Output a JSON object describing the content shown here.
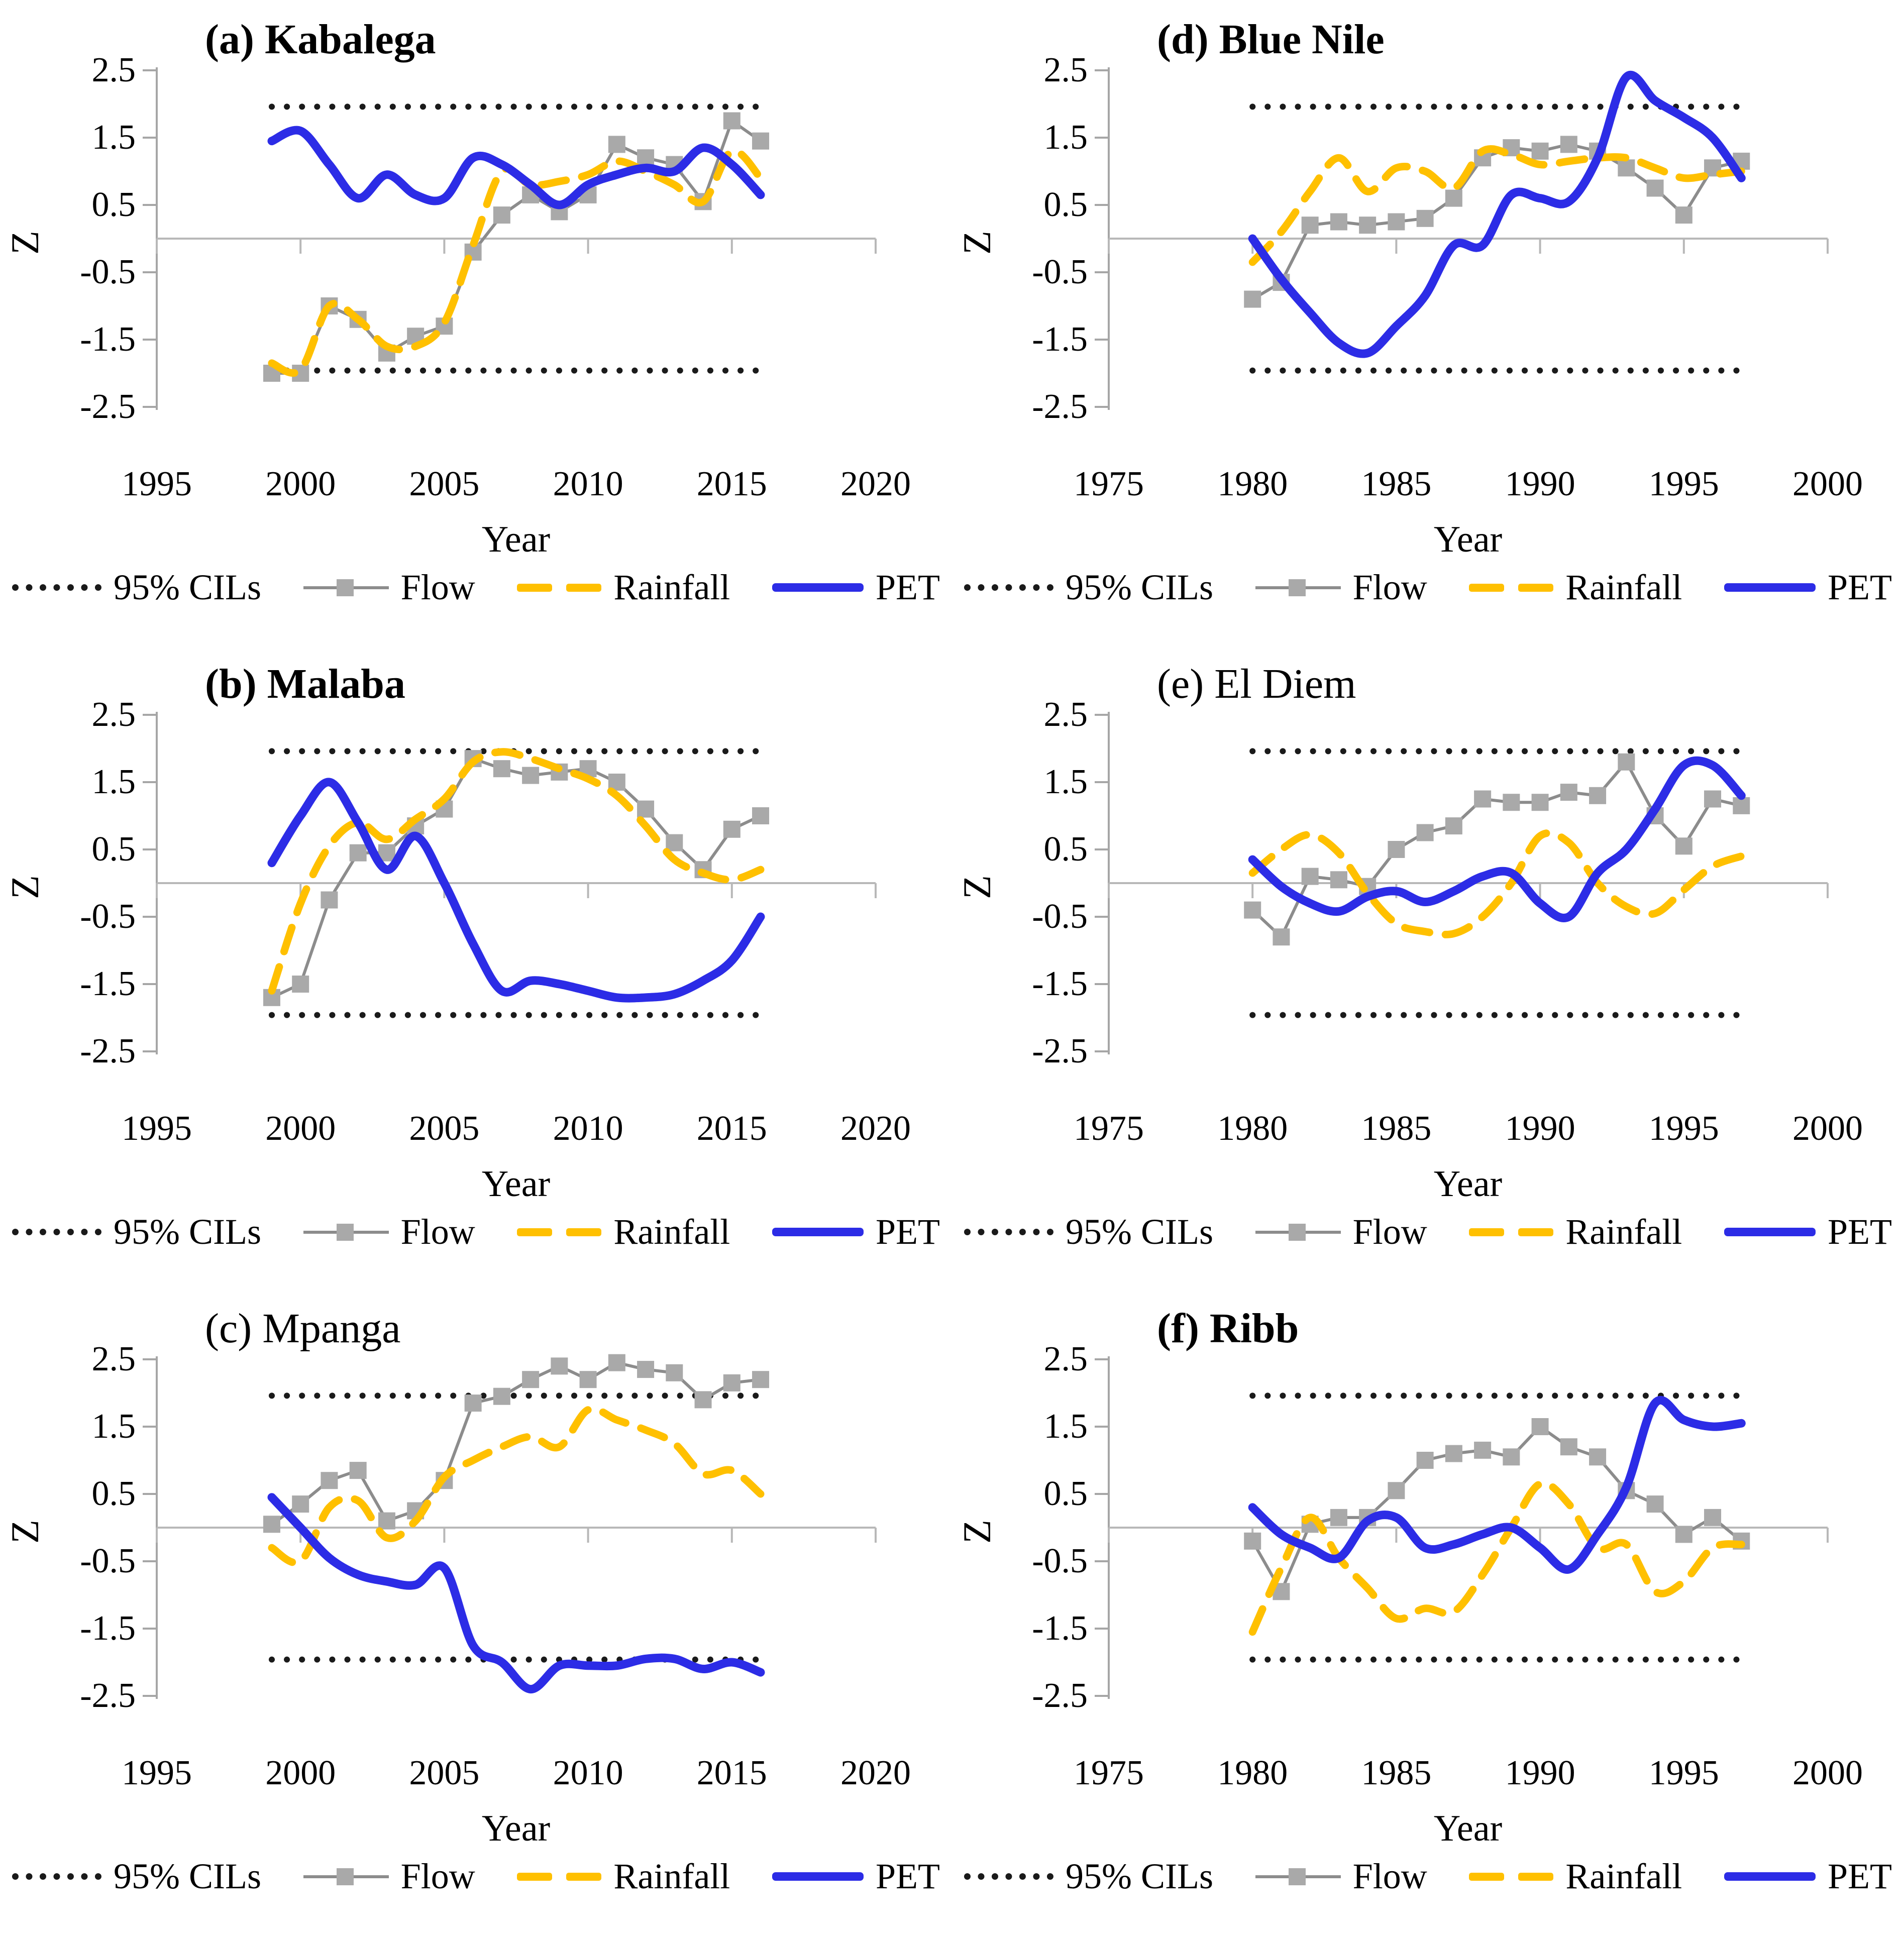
{
  "figure": {
    "background": "#ffffff"
  },
  "colors": {
    "flow_marker": "#a9a9a9",
    "flow_line": "#8c8c8c",
    "rainfall": "#ffc000",
    "pet": "#2c2ce6",
    "cil": "#1a1a1a",
    "y_axis": "#a6a6a6",
    "zero_line": "#b8b8b8"
  },
  "legend": {
    "cils": "95% CILs",
    "flow": "Flow",
    "rainfall": "Rainfall",
    "pet": "PET"
  },
  "chart_data": [
    {
      "id": "a",
      "type": "line",
      "title": "(a) Kabalega",
      "title_bold": true,
      "xlabel": "Year",
      "ylabel": "Z",
      "x_range": [
        1995,
        2020
      ],
      "ylim": [
        -2.5,
        2.5
      ],
      "cil": 1.96,
      "x_ticks": [
        "1995",
        "2000",
        "2005",
        "2010",
        "2015",
        "2020"
      ],
      "y_ticks": [
        "2.5",
        "1.5",
        "0.5",
        "-0.5",
        "-1.5",
        "-2.5"
      ],
      "years": [
        1999,
        2000,
        2001,
        2002,
        2003,
        2004,
        2005,
        2006,
        2007,
        2008,
        2009,
        2010,
        2011,
        2012,
        2013,
        2014,
        2015,
        2016
      ],
      "series": [
        {
          "name": "Flow",
          "values": [
            -2.0,
            -2.0,
            -1.0,
            -1.2,
            -1.7,
            -1.45,
            -1.3,
            -0.2,
            0.35,
            0.65,
            0.4,
            0.65,
            1.4,
            1.2,
            1.1,
            0.55,
            1.75,
            1.45
          ]
        },
        {
          "name": "Rainfall",
          "values": [
            -1.85,
            -1.95,
            -1.0,
            -1.2,
            -1.6,
            -1.6,
            -1.25,
            -0.1,
            1.0,
            0.8,
            0.85,
            0.95,
            1.15,
            1.0,
            0.8,
            0.55,
            1.3,
            0.9
          ]
        },
        {
          "name": "PET",
          "values": [
            1.45,
            1.6,
            1.1,
            0.6,
            0.95,
            0.65,
            0.6,
            1.2,
            1.1,
            0.8,
            0.5,
            0.8,
            0.95,
            1.05,
            1.0,
            1.35,
            1.1,
            0.65
          ]
        }
      ]
    },
    {
      "id": "d",
      "type": "line",
      "title": "(d) Blue Nile",
      "title_bold": true,
      "xlabel": "Year",
      "ylabel": "Z",
      "x_range": [
        1975,
        2000
      ],
      "ylim": [
        -2.5,
        2.5
      ],
      "cil": 1.96,
      "x_ticks": [
        "1975",
        "1980",
        "1985",
        "1990",
        "1995",
        "2000"
      ],
      "y_ticks": [
        "2.5",
        "1.5",
        "0.5",
        "-0.5",
        "-1.5",
        "-2.5"
      ],
      "years": [
        1980,
        1981,
        1982,
        1983,
        1984,
        1985,
        1986,
        1987,
        1988,
        1989,
        1990,
        1991,
        1992,
        1993,
        1994,
        1995,
        1996,
        1997
      ],
      "series": [
        {
          "name": "Flow",
          "values": [
            -0.9,
            -0.65,
            0.2,
            0.25,
            0.2,
            0.25,
            0.3,
            0.6,
            1.2,
            1.35,
            1.3,
            1.4,
            1.3,
            1.05,
            0.75,
            0.35,
            1.05,
            1.15
          ]
        },
        {
          "name": "Rainfall",
          "values": [
            -0.35,
            0.1,
            0.7,
            1.2,
            0.7,
            1.05,
            1.0,
            0.75,
            1.3,
            1.25,
            1.1,
            1.15,
            1.2,
            1.2,
            1.05,
            0.9,
            0.95,
            1.0
          ]
        },
        {
          "name": "PET",
          "values": [
            0.0,
            -0.6,
            -1.1,
            -1.55,
            -1.7,
            -1.3,
            -0.85,
            -0.1,
            -0.1,
            0.65,
            0.6,
            0.55,
            1.2,
            2.4,
            2.05,
            1.8,
            1.5,
            0.9
          ]
        }
      ]
    },
    {
      "id": "b",
      "type": "line",
      "title": "(b) Malaba",
      "title_bold": true,
      "xlabel": "Year",
      "ylabel": "Z",
      "x_range": [
        1995,
        2020
      ],
      "ylim": [
        -2.5,
        2.5
      ],
      "cil": 1.96,
      "x_ticks": [
        "1995",
        "2000",
        "2005",
        "2010",
        "2015",
        "2020"
      ],
      "y_ticks": [
        "2.5",
        "1.5",
        "0.5",
        "-0.5",
        "-1.5",
        "-2.5"
      ],
      "years": [
        1999,
        2000,
        2001,
        2002,
        2003,
        2004,
        2005,
        2006,
        2007,
        2008,
        2009,
        2010,
        2011,
        2012,
        2013,
        2014,
        2015,
        2016
      ],
      "series": [
        {
          "name": "Flow",
          "values": [
            -1.7,
            -1.5,
            -0.25,
            0.45,
            0.45,
            0.85,
            1.1,
            1.85,
            1.7,
            1.6,
            1.65,
            1.7,
            1.5,
            1.1,
            0.6,
            0.2,
            0.8,
            1.0
          ]
        },
        {
          "name": "Rainfall",
          "values": [
            -1.6,
            -0.3,
            0.55,
            0.9,
            0.65,
            0.95,
            1.25,
            1.8,
            1.95,
            1.85,
            1.7,
            1.55,
            1.3,
            0.85,
            0.35,
            0.15,
            0.05,
            0.2
          ]
        },
        {
          "name": "PET",
          "values": [
            0.3,
            1.0,
            1.5,
            0.9,
            0.2,
            0.7,
            0.0,
            -0.9,
            -1.6,
            -1.45,
            -1.5,
            -1.6,
            -1.7,
            -1.7,
            -1.65,
            -1.45,
            -1.15,
            -0.5
          ]
        }
      ]
    },
    {
      "id": "e",
      "type": "line",
      "title": "(e) El Diem",
      "title_bold": false,
      "xlabel": "Year",
      "ylabel": "Z",
      "x_range": [
        1975,
        2000
      ],
      "ylim": [
        -2.5,
        2.5
      ],
      "cil": 1.96,
      "x_ticks": [
        "1975",
        "1980",
        "1985",
        "1990",
        "1995",
        "2000"
      ],
      "y_ticks": [
        "2.5",
        "1.5",
        "0.5",
        "-0.5",
        "-1.5",
        "-2.5"
      ],
      "years": [
        1980,
        1981,
        1982,
        1983,
        1984,
        1985,
        1986,
        1987,
        1988,
        1989,
        1990,
        1991,
        1992,
        1993,
        1994,
        1995,
        1996,
        1997
      ],
      "series": [
        {
          "name": "Flow",
          "values": [
            -0.4,
            -0.8,
            0.1,
            0.05,
            -0.05,
            0.5,
            0.75,
            0.85,
            1.25,
            1.2,
            1.2,
            1.35,
            1.3,
            1.8,
            1.0,
            0.55,
            1.25,
            1.15
          ]
        },
        {
          "name": "Rainfall",
          "values": [
            0.15,
            0.5,
            0.72,
            0.45,
            -0.15,
            -0.6,
            -0.72,
            -0.75,
            -0.5,
            0.0,
            0.7,
            0.6,
            0.0,
            -0.35,
            -0.45,
            -0.1,
            0.25,
            0.4
          ]
        },
        {
          "name": "PET",
          "values": [
            0.35,
            -0.05,
            -0.3,
            -0.42,
            -0.2,
            -0.12,
            -0.28,
            -0.12,
            0.1,
            0.15,
            -0.3,
            -0.5,
            0.15,
            0.5,
            1.1,
            1.75,
            1.75,
            1.3
          ]
        }
      ]
    },
    {
      "id": "c",
      "type": "line",
      "title": "(c) Mpanga",
      "title_bold": false,
      "xlabel": "Year",
      "ylabel": "Z",
      "x_range": [
        1995,
        2020
      ],
      "ylim": [
        -2.5,
        2.5
      ],
      "cil": 1.96,
      "x_ticks": [
        "1995",
        "2000",
        "2005",
        "2010",
        "2015",
        "2020"
      ],
      "y_ticks": [
        "2.5",
        "1.5",
        "0.5",
        "-0.5",
        "-1.5",
        "-2.5"
      ],
      "years": [
        1999,
        2000,
        2001,
        2002,
        2003,
        2004,
        2005,
        2006,
        2007,
        2008,
        2009,
        2010,
        2011,
        2012,
        2013,
        2014,
        2015,
        2016
      ],
      "series": [
        {
          "name": "Flow",
          "values": [
            0.05,
            0.35,
            0.7,
            0.85,
            0.1,
            0.25,
            0.7,
            1.85,
            1.95,
            2.2,
            2.4,
            2.2,
            2.45,
            2.35,
            2.3,
            1.9,
            2.15,
            2.2
          ]
        },
        {
          "name": "Rainfall",
          "values": [
            -0.3,
            -0.5,
            0.3,
            0.4,
            -0.15,
            0.1,
            0.75,
            1.0,
            1.2,
            1.35,
            1.2,
            1.75,
            1.6,
            1.45,
            1.25,
            0.8,
            0.85,
            0.5
          ]
        },
        {
          "name": "PET",
          "values": [
            0.45,
            0.0,
            -0.45,
            -0.7,
            -0.8,
            -0.85,
            -0.6,
            -1.75,
            -2.0,
            -2.4,
            -2.05,
            -2.05,
            -2.05,
            -1.95,
            -1.95,
            -2.1,
            -2.0,
            -2.15
          ]
        }
      ]
    },
    {
      "id": "f",
      "type": "line",
      "title": "(f) Ribb",
      "title_bold": true,
      "xlabel": "Year",
      "ylabel": "Z",
      "x_range": [
        1975,
        2000
      ],
      "ylim": [
        -2.5,
        2.5
      ],
      "cil": 1.96,
      "x_ticks": [
        "1975",
        "1980",
        "1985",
        "1990",
        "1995",
        "2000"
      ],
      "y_ticks": [
        "2.5",
        "1.5",
        "0.5",
        "-0.5",
        "-1.5",
        "-2.5"
      ],
      "years": [
        1980,
        1981,
        1982,
        1983,
        1984,
        1985,
        1986,
        1987,
        1988,
        1989,
        1990,
        1991,
        1992,
        1993,
        1994,
        1995,
        1996,
        1997
      ],
      "series": [
        {
          "name": "Flow",
          "values": [
            -0.2,
            -0.95,
            0.05,
            0.15,
            0.15,
            0.55,
            1.0,
            1.1,
            1.15,
            1.05,
            1.5,
            1.2,
            1.05,
            0.55,
            0.35,
            -0.1,
            0.15,
            -0.2
          ]
        },
        {
          "name": "Rainfall",
          "values": [
            -1.55,
            -0.6,
            0.15,
            -0.45,
            -0.9,
            -1.35,
            -1.2,
            -1.25,
            -0.7,
            0.0,
            0.65,
            0.35,
            -0.3,
            -0.25,
            -0.95,
            -0.8,
            -0.3,
            -0.25
          ]
        },
        {
          "name": "PET",
          "values": [
            0.3,
            -0.1,
            -0.3,
            -0.45,
            0.1,
            0.15,
            -0.3,
            -0.25,
            -0.1,
            0.0,
            -0.3,
            -0.62,
            -0.1,
            0.6,
            1.85,
            1.6,
            1.5,
            1.55
          ]
        }
      ]
    }
  ]
}
